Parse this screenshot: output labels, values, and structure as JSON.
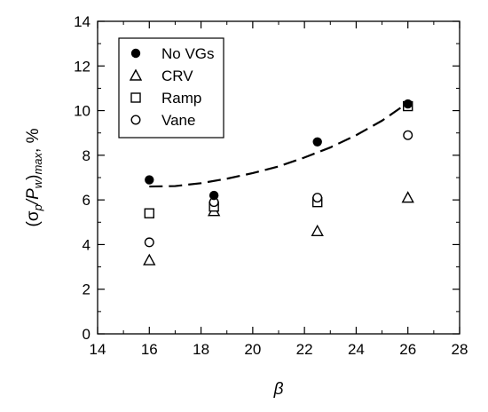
{
  "chart_data": {
    "type": "scatter",
    "xlabel": "β",
    "ylabel": {
      "open": "(σ",
      "sub1": "p",
      "mid": "/P",
      "sub2": "w",
      "close": ")",
      "sub3": "max",
      "unit": ", %"
    },
    "xlim": [
      14,
      28
    ],
    "ylim": [
      0,
      14
    ],
    "xticks": [
      "14",
      "16",
      "18",
      "20",
      "22",
      "24",
      "26",
      "28"
    ],
    "yticks": [
      "0",
      "2",
      "4",
      "6",
      "8",
      "10",
      "12",
      "14"
    ],
    "grid": false,
    "legend_position": "top-left",
    "series": [
      {
        "name": "No VGs",
        "marker": "filled-circle",
        "x": [
          16,
          18.5,
          22.5,
          26
        ],
        "y": [
          6.9,
          6.2,
          8.6,
          10.3
        ]
      },
      {
        "name": "CRV",
        "marker": "open-triangle",
        "x": [
          16,
          18.5,
          22.5,
          26
        ],
        "y": [
          3.3,
          5.5,
          4.6,
          6.1
        ]
      },
      {
        "name": "Ramp",
        "marker": "open-square",
        "x": [
          16,
          18.5,
          22.5,
          26
        ],
        "y": [
          5.4,
          5.7,
          5.9,
          10.2
        ]
      },
      {
        "name": "Vane",
        "marker": "open-circle",
        "x": [
          16,
          18.5,
          22.5,
          26
        ],
        "y": [
          4.1,
          5.9,
          6.1,
          8.9
        ]
      }
    ],
    "trend_line": {
      "style": "dashed",
      "x": [
        16,
        17,
        18,
        19,
        20,
        21,
        22,
        23,
        24,
        25,
        26
      ],
      "y": [
        6.6,
        6.62,
        6.75,
        6.95,
        7.2,
        7.5,
        7.9,
        8.35,
        8.9,
        9.55,
        10.35
      ]
    }
  }
}
